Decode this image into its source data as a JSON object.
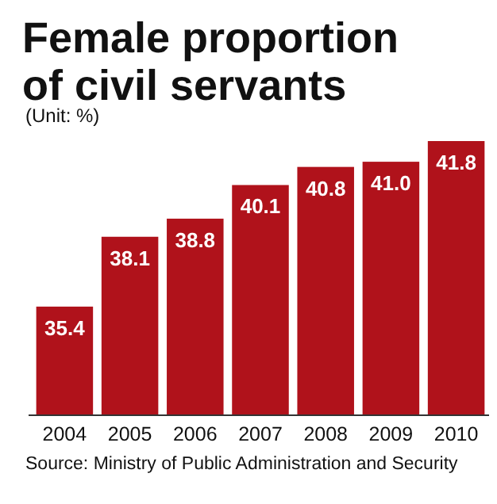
{
  "chart_data": {
    "type": "bar",
    "title": "Female proportion of civil servants",
    "subtitle": "(Unit: %)",
    "categories": [
      "2004",
      "2005",
      "2006",
      "2007",
      "2008",
      "2009",
      "2010"
    ],
    "values": [
      35.4,
      38.1,
      38.8,
      40.1,
      40.8,
      41.0,
      41.8
    ],
    "value_labels": [
      "35.4",
      "38.1",
      "38.8",
      "40.1",
      "40.8",
      "41.0",
      "41.8"
    ],
    "color": "#b0121b",
    "ylim": [
      31.2,
      41.8
    ],
    "annotations": [
      "Source: Ministry of Public Administration and Security"
    ]
  }
}
